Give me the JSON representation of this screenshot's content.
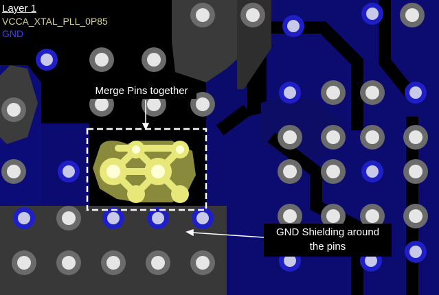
{
  "legend": {
    "layer": "Layer 1",
    "net_vcca": "VCCA_XTAL_PLL_0P85",
    "net_gnd": "GND",
    "colors": {
      "layer": "#ffffff",
      "vcca": "#d8d58a",
      "gnd": "#3b3bff"
    }
  },
  "annotations": {
    "merge_pins": "Merge Pins together",
    "gnd_shielding_line1": "GND Shielding around",
    "gnd_shielding_line2": "the pins"
  },
  "colors": {
    "background": "#000000",
    "gnd_plane": "#0c0c78",
    "gnd_pad": "#1f1fc8",
    "gnd_pad_core": "#c8c8e8",
    "gray_pad": "#6b6b6b",
    "gray_core": "#e6e6e6",
    "dark_region": "#3c3c3c",
    "vcca_pad": "#e8e87a",
    "vcca_glow": "#ffffc8"
  }
}
